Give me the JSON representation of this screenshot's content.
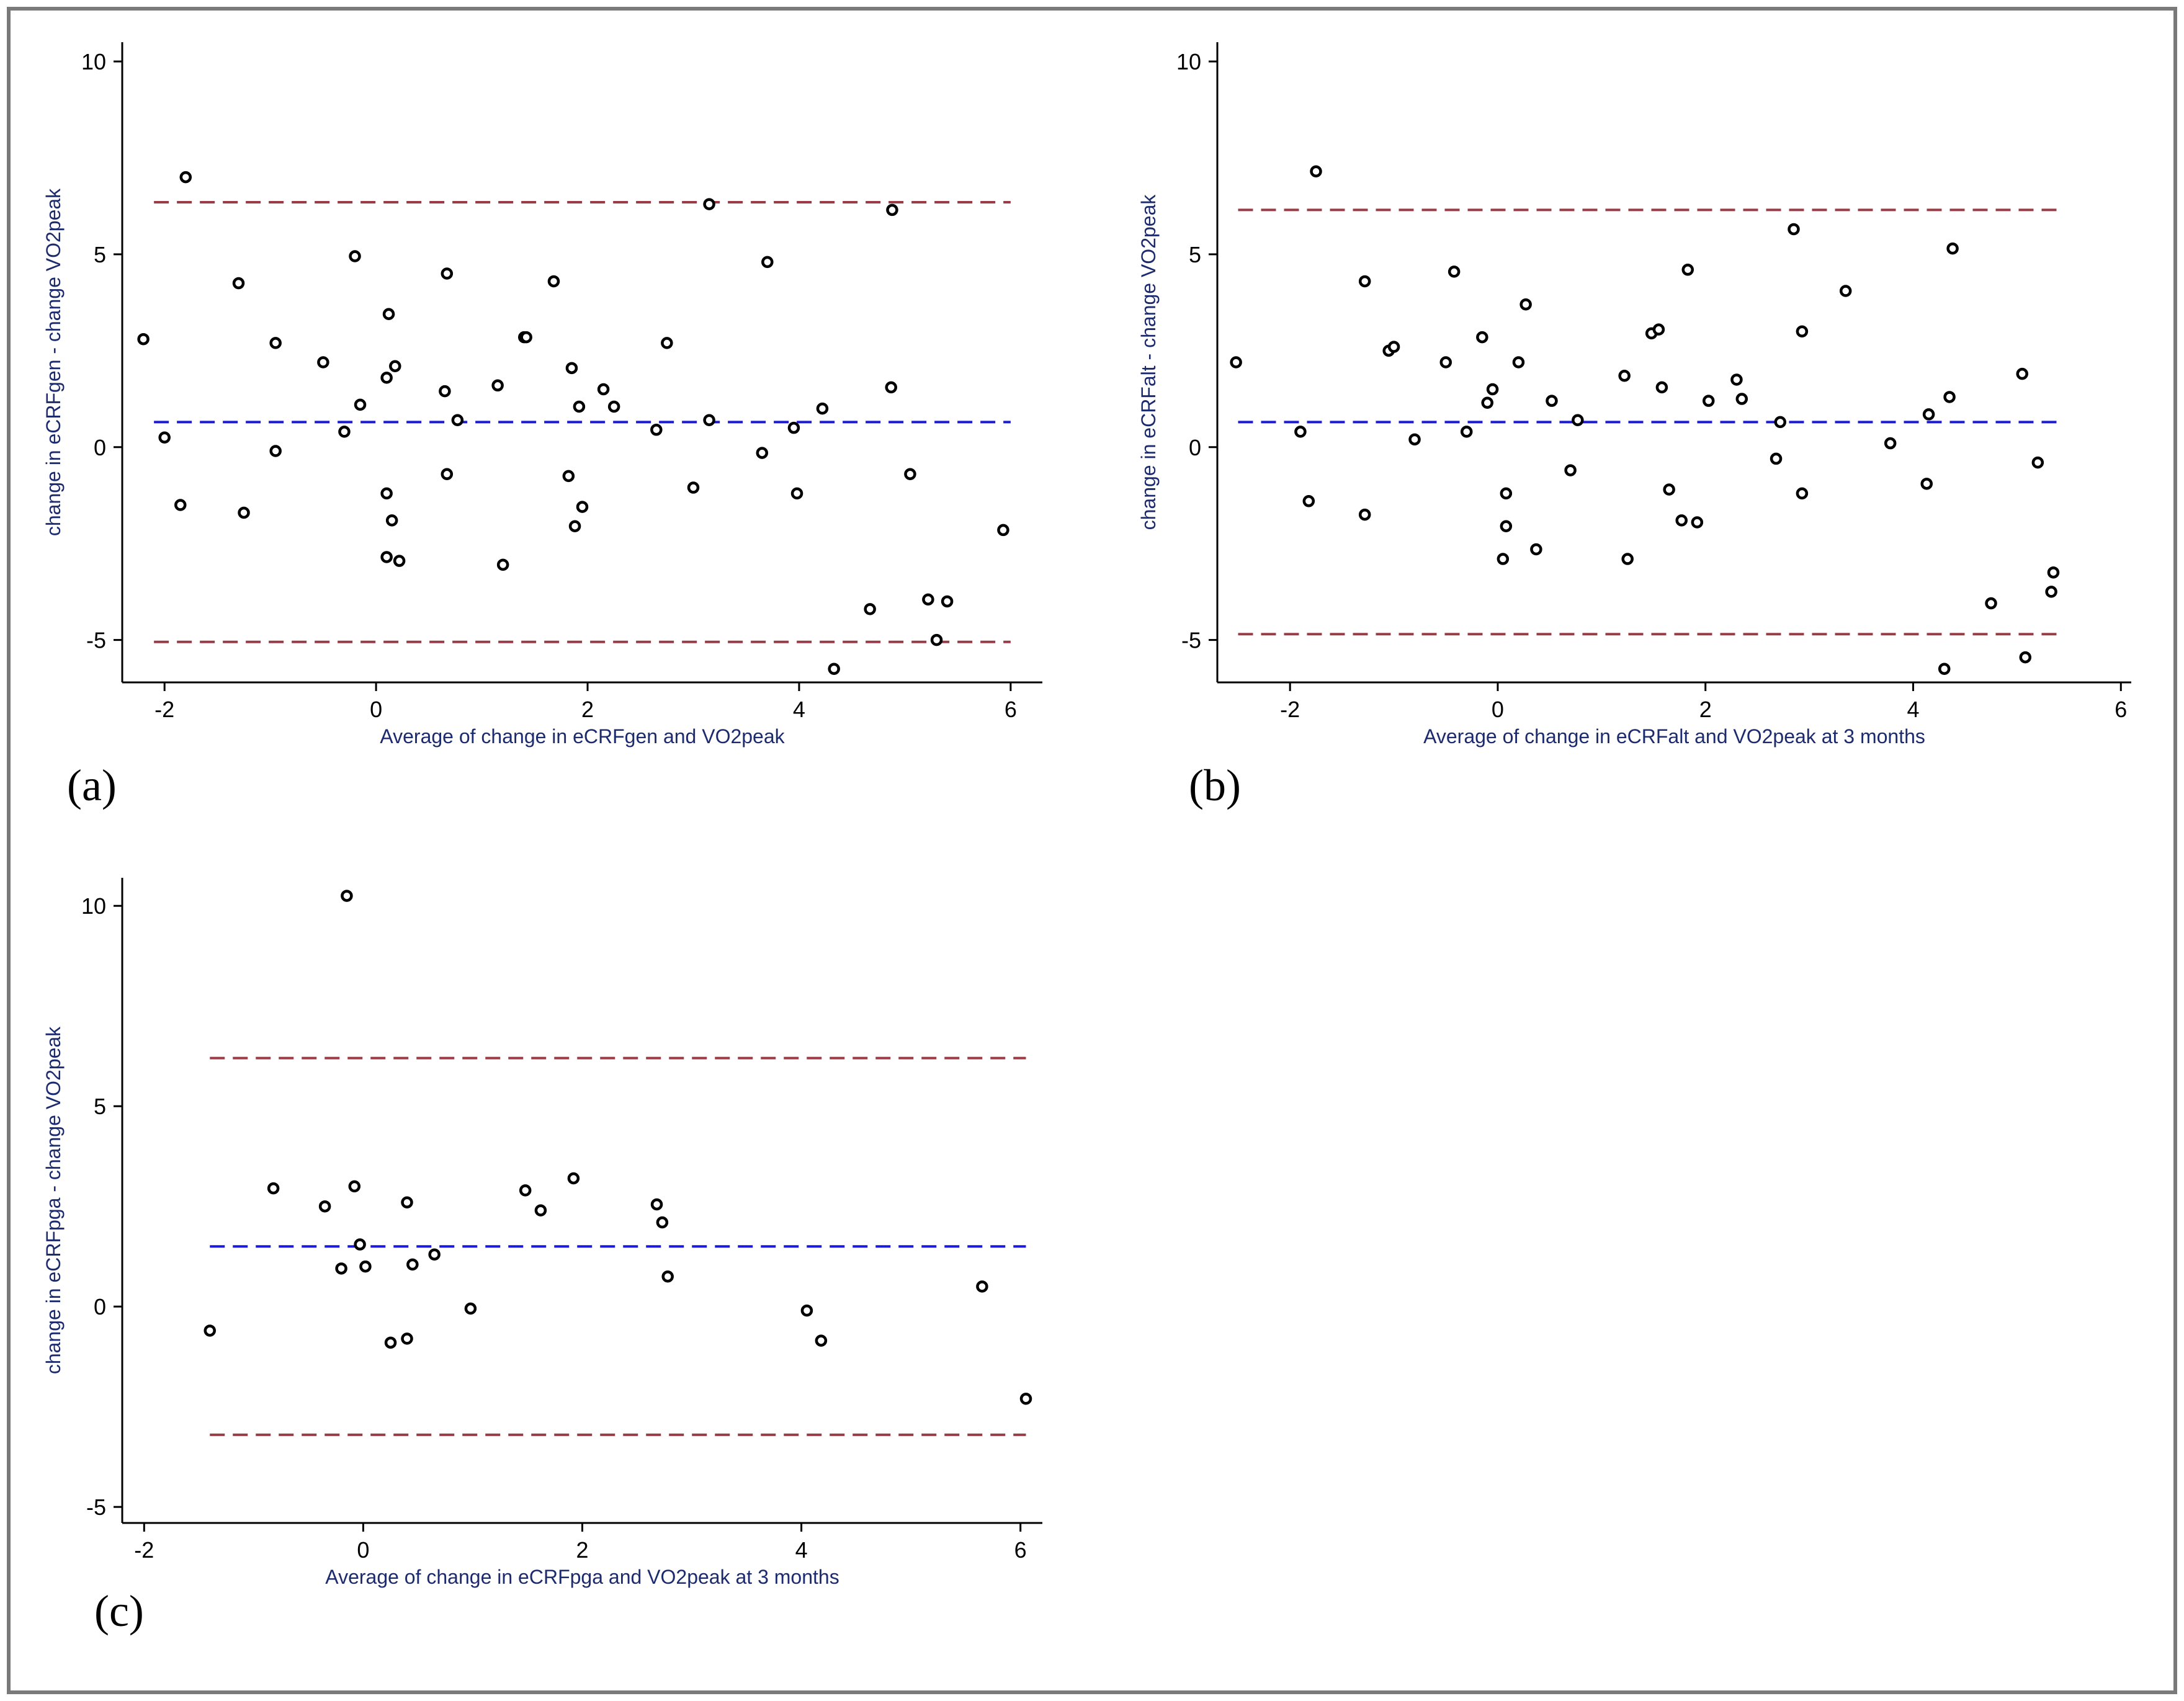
{
  "colors": {
    "limit_line": "#9b3b46",
    "mean_line": "#1a1ad8",
    "axis_label": "#1c2a6e",
    "border": "#7a7a7a"
  },
  "chart_data": [
    {
      "id": "a",
      "type": "scatter",
      "panel_label": "(a)",
      "xlabel": "Average of change in eCRFgen and VO2peak",
      "ylabel": "change in eCRFgen - change VO2peak",
      "xlim": [
        -2.4,
        6.3
      ],
      "ylim": [
        -6.1,
        10.5
      ],
      "xticks": [
        -2,
        0,
        2,
        4,
        6
      ],
      "xtick_labels": [
        "-2",
        "0",
        "2",
        "4",
        "6"
      ],
      "yticks": [
        -5,
        0,
        5,
        10
      ],
      "ytick_labels": [
        "-5",
        "0",
        "5",
        "10"
      ],
      "hlines": {
        "upper_loa": 6.35,
        "mean": 0.65,
        "lower_loa": -5.05
      },
      "line_x_range": [
        -2.1,
        6.0
      ],
      "points": [
        [
          -2.2,
          2.8
        ],
        [
          -2.0,
          0.25
        ],
        [
          -1.85,
          -1.5
        ],
        [
          -1.8,
          7.0
        ],
        [
          -1.3,
          4.25
        ],
        [
          -1.25,
          -1.7
        ],
        [
          -0.95,
          2.7
        ],
        [
          -0.95,
          -0.1
        ],
        [
          -0.5,
          2.2
        ],
        [
          -0.3,
          0.4
        ],
        [
          -0.2,
          4.95
        ],
        [
          -0.15,
          1.1
        ],
        [
          0.1,
          1.8
        ],
        [
          0.1,
          -1.2
        ],
        [
          0.1,
          -2.85
        ],
        [
          0.12,
          3.45
        ],
        [
          0.15,
          -1.9
        ],
        [
          0.18,
          2.1
        ],
        [
          0.22,
          -2.95
        ],
        [
          0.65,
          1.45
        ],
        [
          0.67,
          4.5
        ],
        [
          0.67,
          -0.7
        ],
        [
          0.77,
          0.7
        ],
        [
          1.15,
          1.6
        ],
        [
          1.2,
          -3.05
        ],
        [
          1.4,
          2.85
        ],
        [
          1.42,
          2.85
        ],
        [
          1.68,
          4.3
        ],
        [
          1.82,
          -0.75
        ],
        [
          1.85,
          2.05
        ],
        [
          1.88,
          -2.05
        ],
        [
          1.92,
          1.05
        ],
        [
          1.95,
          -1.55
        ],
        [
          2.15,
          1.5
        ],
        [
          2.25,
          1.05
        ],
        [
          2.65,
          0.45
        ],
        [
          2.75,
          2.7
        ],
        [
          3.0,
          -1.05
        ],
        [
          3.15,
          6.3
        ],
        [
          3.15,
          0.7
        ],
        [
          3.65,
          -0.15
        ],
        [
          3.7,
          4.8
        ],
        [
          3.95,
          0.5
        ],
        [
          3.98,
          -1.2
        ],
        [
          4.22,
          1.0
        ],
        [
          4.33,
          -5.75
        ],
        [
          4.67,
          -4.2
        ],
        [
          4.87,
          1.55
        ],
        [
          4.88,
          6.15
        ],
        [
          5.05,
          -0.7
        ],
        [
          5.22,
          -3.95
        ],
        [
          5.3,
          -5.0
        ],
        [
          5.4,
          -4.0
        ],
        [
          5.93,
          -2.15
        ]
      ]
    },
    {
      "id": "b",
      "type": "scatter",
      "panel_label": "(b)",
      "xlabel": "Average of change in eCRFalt and VO2peak at 3 months",
      "ylabel": "change in eCRFalt - change VO2peak",
      "xlim": [
        -2.7,
        6.1
      ],
      "ylim": [
        -6.1,
        10.5
      ],
      "xticks": [
        -2,
        0,
        2,
        4,
        6
      ],
      "xtick_labels": [
        "-2",
        "0",
        "2",
        "4",
        "6"
      ],
      "yticks": [
        -5,
        0,
        5,
        10
      ],
      "ytick_labels": [
        "-5",
        "0",
        "5",
        "10"
      ],
      "hlines": {
        "upper_loa": 6.15,
        "mean": 0.65,
        "lower_loa": -4.85
      },
      "line_x_range": [
        -2.5,
        5.4
      ],
      "points": [
        [
          -2.52,
          2.2
        ],
        [
          -1.9,
          0.4
        ],
        [
          -1.82,
          -1.4
        ],
        [
          -1.75,
          7.15
        ],
        [
          -1.28,
          4.3
        ],
        [
          -1.28,
          -1.75
        ],
        [
          -1.05,
          2.5
        ],
        [
          -1.0,
          2.6
        ],
        [
          -0.8,
          0.2
        ],
        [
          -0.5,
          2.2
        ],
        [
          -0.42,
          4.55
        ],
        [
          -0.3,
          0.4
        ],
        [
          -0.15,
          2.85
        ],
        [
          -0.1,
          1.15
        ],
        [
          -0.05,
          1.5
        ],
        [
          0.05,
          -2.9
        ],
        [
          0.08,
          -1.2
        ],
        [
          0.08,
          -2.05
        ],
        [
          0.2,
          2.2
        ],
        [
          0.27,
          3.7
        ],
        [
          0.37,
          -2.65
        ],
        [
          0.52,
          1.2
        ],
        [
          0.7,
          -0.6
        ],
        [
          0.77,
          0.7
        ],
        [
          1.22,
          1.85
        ],
        [
          1.25,
          -2.9
        ],
        [
          1.48,
          2.95
        ],
        [
          1.55,
          3.05
        ],
        [
          1.58,
          1.55
        ],
        [
          1.65,
          -1.1
        ],
        [
          1.77,
          -1.9
        ],
        [
          1.83,
          4.6
        ],
        [
          1.92,
          -1.95
        ],
        [
          2.03,
          1.2
        ],
        [
          2.3,
          1.75
        ],
        [
          2.35,
          1.25
        ],
        [
          2.68,
          -0.3
        ],
        [
          2.72,
          0.65
        ],
        [
          2.85,
          5.65
        ],
        [
          2.93,
          -1.2
        ],
        [
          2.93,
          3.0
        ],
        [
          3.35,
          4.05
        ],
        [
          3.78,
          0.1
        ],
        [
          4.13,
          -0.95
        ],
        [
          4.15,
          0.85
        ],
        [
          4.3,
          -5.75
        ],
        [
          4.35,
          1.3
        ],
        [
          4.38,
          5.15
        ],
        [
          4.75,
          -4.05
        ],
        [
          5.05,
          1.9
        ],
        [
          5.08,
          -5.45
        ],
        [
          5.2,
          -0.4
        ],
        [
          5.33,
          -3.75
        ],
        [
          5.35,
          -3.25
        ]
      ]
    },
    {
      "id": "c",
      "type": "scatter",
      "panel_label": "(c)",
      "xlabel": "Average of change in eCRFpga and VO2peak at 3 months",
      "ylabel": "change in eCRFpga - change VO2peak",
      "xlim": [
        -2.2,
        6.2
      ],
      "ylim": [
        -5.4,
        10.7
      ],
      "xticks": [
        -2,
        0,
        2,
        4,
        6
      ],
      "xtick_labels": [
        "-2",
        "0",
        "2",
        "4",
        "6"
      ],
      "yticks": [
        -5,
        0,
        5,
        10
      ],
      "ytick_labels": [
        "-5",
        "0",
        "5",
        "10"
      ],
      "hlines": {
        "upper_loa": 6.2,
        "mean": 1.5,
        "lower_loa": -3.2
      },
      "line_x_range": [
        -1.4,
        6.05
      ],
      "points": [
        [
          -1.4,
          -0.6
        ],
        [
          -0.82,
          2.95
        ],
        [
          -0.35,
          2.5
        ],
        [
          -0.2,
          0.95
        ],
        [
          -0.15,
          10.25
        ],
        [
          -0.08,
          3.0
        ],
        [
          -0.03,
          1.55
        ],
        [
          0.02,
          1.0
        ],
        [
          0.25,
          -0.9
        ],
        [
          0.4,
          -0.8
        ],
        [
          0.4,
          2.6
        ],
        [
          0.45,
          1.05
        ],
        [
          0.65,
          1.3
        ],
        [
          0.98,
          -0.05
        ],
        [
          1.48,
          2.9
        ],
        [
          1.62,
          2.4
        ],
        [
          1.92,
          3.2
        ],
        [
          2.68,
          2.55
        ],
        [
          2.73,
          2.1
        ],
        [
          2.78,
          0.75
        ],
        [
          4.05,
          -0.1
        ],
        [
          4.18,
          -0.85
        ],
        [
          5.65,
          0.5
        ],
        [
          6.05,
          -2.3
        ]
      ]
    }
  ]
}
